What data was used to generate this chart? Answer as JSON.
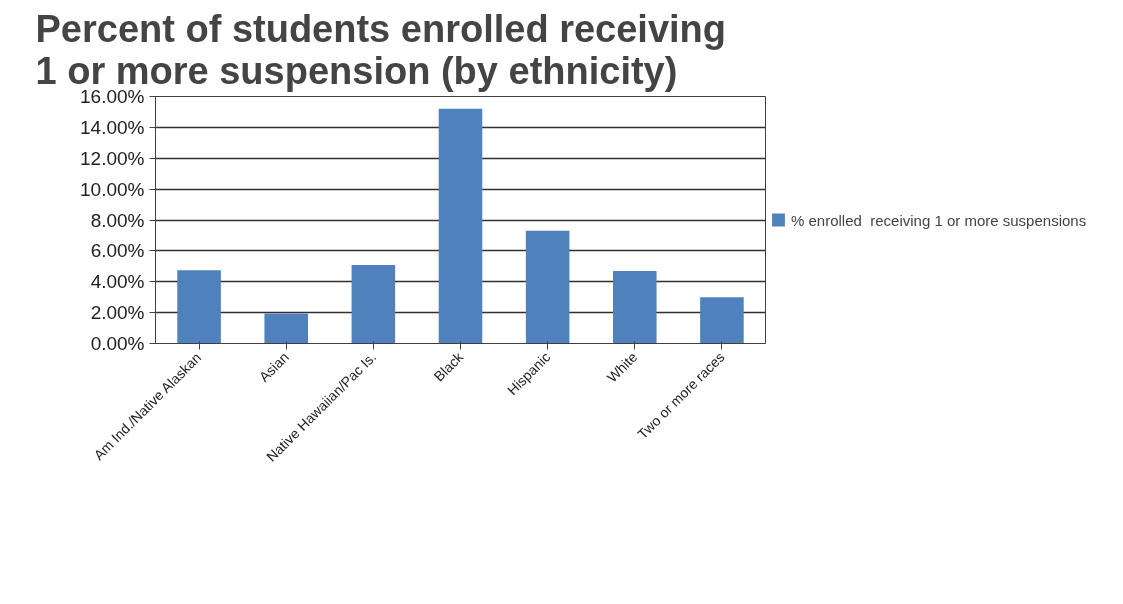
{
  "chart_data": {
    "type": "bar",
    "title": "Percent of students enrolled receiving\n1 or more suspension (by ethnicity)",
    "categories": [
      "Am Ind./Native Alaskan",
      "Asian",
      "Native Hawaiian/Pac Is.",
      "Black",
      "Hispanic",
      "White",
      "Two or more races"
    ],
    "series": [
      {
        "name": "% enrolled  receiving 1 or more suspensions",
        "color": "#4f81bd",
        "values": [
          4.75,
          1.94,
          5.08,
          15.2,
          7.3,
          4.7,
          3.0
        ]
      }
    ],
    "ylim": [
      0,
      16
    ],
    "yticks": [
      {
        "value": 0,
        "label": "0.00%"
      },
      {
        "value": 2,
        "label": "2.00%"
      },
      {
        "value": 4,
        "label": "4.00%"
      },
      {
        "value": 6,
        "label": "6.00%"
      },
      {
        "value": 8,
        "label": "8.00%"
      },
      {
        "value": 10,
        "label": "10.00%"
      },
      {
        "value": 12,
        "label": "12.00%"
      },
      {
        "value": 14,
        "label": "14.00%"
      },
      {
        "value": 16,
        "label": "16.00%"
      }
    ],
    "grid": "y",
    "legend": "right"
  }
}
